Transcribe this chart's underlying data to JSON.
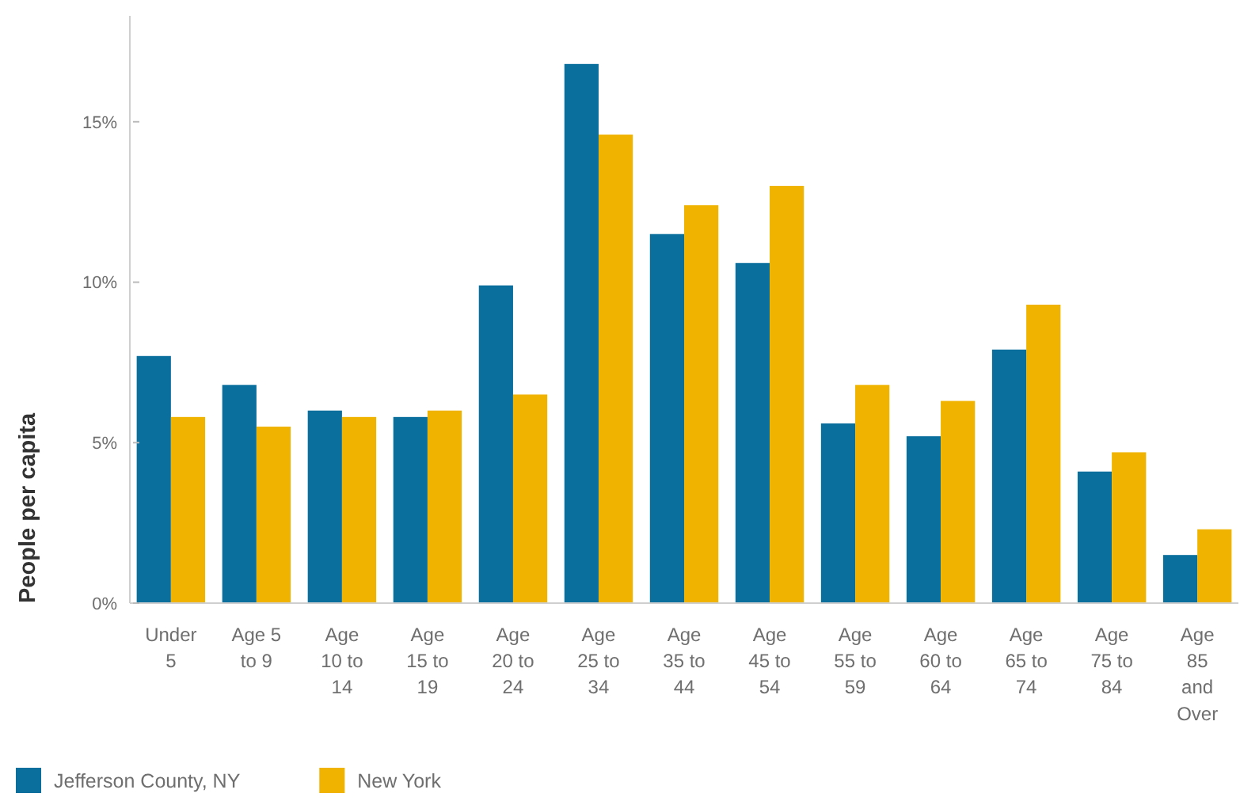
{
  "chart_data": {
    "type": "bar",
    "ylabel": "People per capita",
    "categories": [
      "Under 5",
      "Age 5 to 9",
      "Age 10 to 14",
      "Age 15 to 19",
      "Age 20 to 24",
      "Age 25 to 34",
      "Age 35 to 44",
      "Age 45 to 54",
      "Age 55 to 59",
      "Age 60 to 64",
      "Age 65 to 74",
      "Age 75 to 84",
      "Age 85 and Over"
    ],
    "series": [
      {
        "name": "Jefferson County, NY",
        "color": "#0b6f9e",
        "values": [
          7.7,
          6.8,
          6.0,
          5.8,
          9.9,
          16.8,
          11.5,
          10.6,
          5.6,
          5.2,
          7.9,
          4.1,
          1.5
        ]
      },
      {
        "name": "New York",
        "color": "#f0b400",
        "values": [
          5.8,
          5.5,
          5.8,
          6.0,
          6.5,
          14.6,
          12.4,
          13.0,
          6.8,
          6.3,
          9.3,
          4.7,
          2.3
        ]
      }
    ],
    "ylim": [
      0,
      18.3
    ],
    "yticks": [
      {
        "value": 0,
        "label": "0%"
      },
      {
        "value": 5,
        "label": "5%"
      },
      {
        "value": 10,
        "label": "10%"
      },
      {
        "value": 15,
        "label": "15%"
      }
    ],
    "grid": false,
    "legend": "bottom left"
  }
}
